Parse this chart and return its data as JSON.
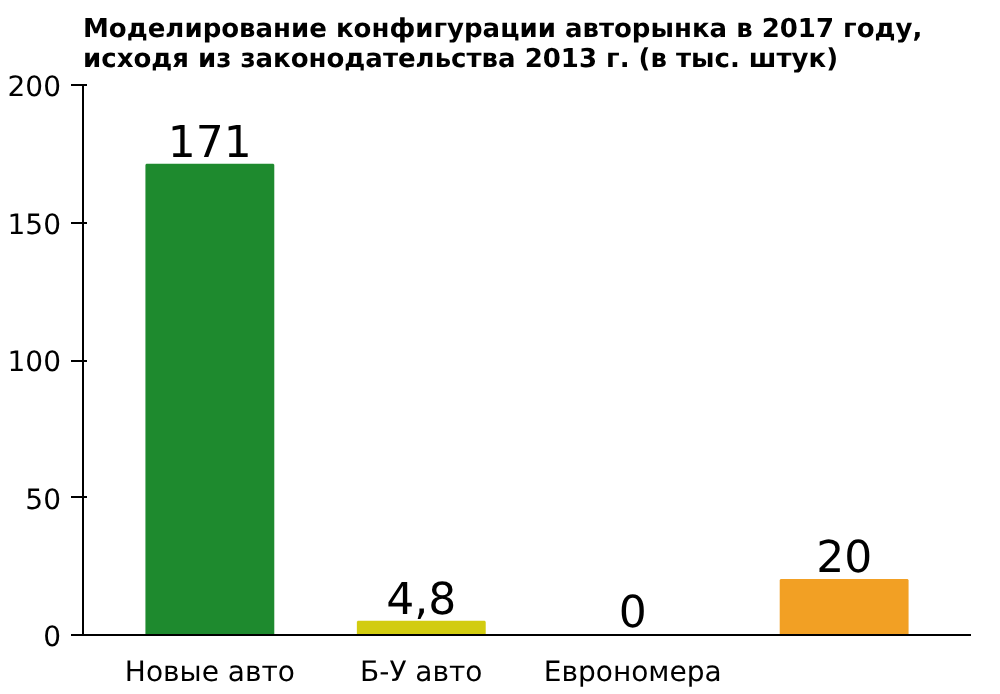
{
  "chart_data": {
    "type": "bar",
    "title": "Моделирование конфигурации авторынка в 2017 году,\nисходя из законодательства 2013 г. (в тыс. штук)",
    "categories": [
      "Новые авто",
      "Б-У авто",
      "Еврономера",
      null
    ],
    "values": [
      171,
      4.8,
      0,
      20
    ],
    "value_labels": [
      "171",
      "4,8",
      "0",
      "20"
    ],
    "colors": [
      "#1e8a2e",
      "#d2cc10",
      "#7ea41e",
      "#f2a024"
    ],
    "ylim": [
      0,
      200
    ],
    "yticks": [
      0,
      50,
      100,
      150,
      200
    ],
    "grid": false
  }
}
